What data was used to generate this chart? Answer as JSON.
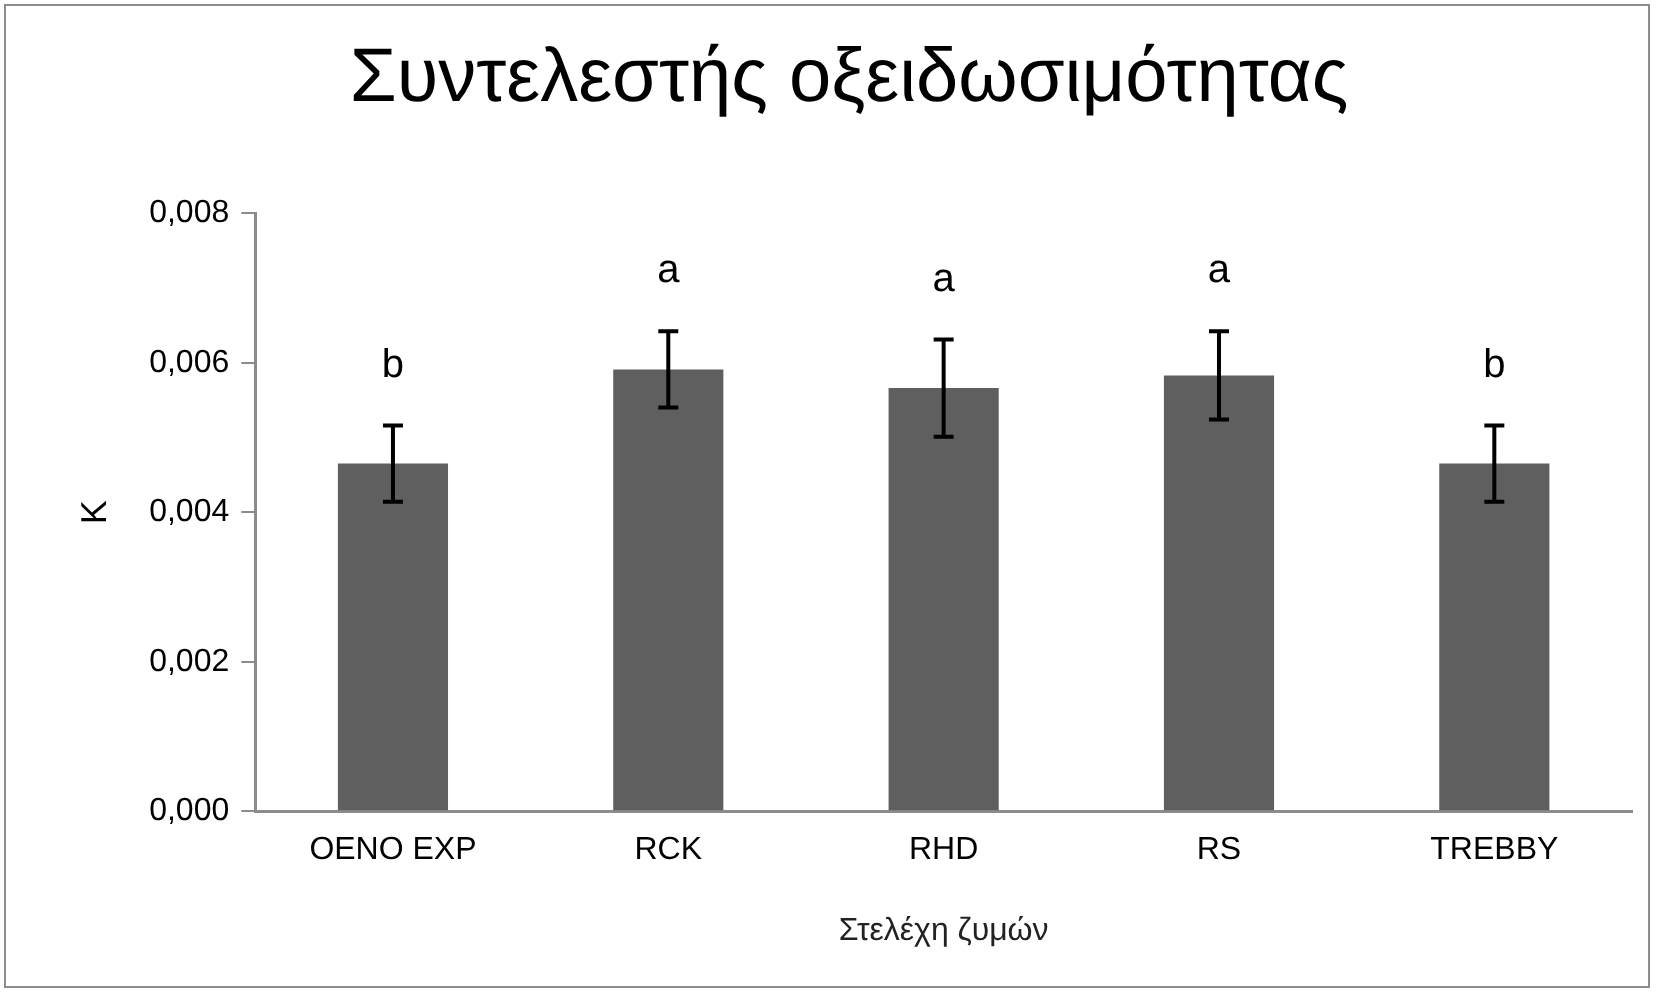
{
  "chart_data": {
    "type": "bar",
    "title": "Συντελεστής οξειδωσιμότητας",
    "xlabel": "Στελέχη ζυμών",
    "ylabel": "K",
    "categories": [
      "OENO EXP",
      "RCK",
      "RHD",
      "RS",
      "TREBBY"
    ],
    "series": [
      {
        "color": "#5f5f5f",
        "values": [
          0.00465,
          0.00591,
          0.00566,
          0.00583,
          0.00465
        ],
        "errors": [
          0.00051,
          0.00051,
          0.00065,
          0.00059,
          0.00051
        ]
      }
    ],
    "ylim": [
      0,
      0.008
    ],
    "yticks": [
      {
        "value": 0,
        "label": "0,000"
      },
      {
        "value": 0.002,
        "label": "0,002"
      },
      {
        "value": 0.004,
        "label": "0,004"
      },
      {
        "value": 0.006,
        "label": "0,006"
      },
      {
        "value": 0.008,
        "label": "0,008"
      }
    ],
    "annotations": [
      "b",
      "a",
      "a",
      "a",
      "b"
    ],
    "grid": false,
    "legend": false
  }
}
